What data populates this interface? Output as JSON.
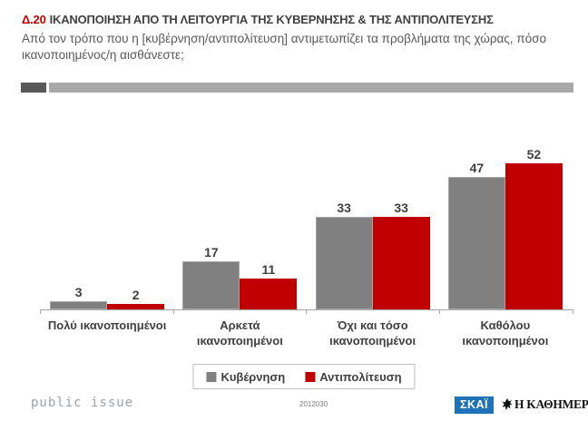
{
  "header": {
    "code": "Δ.20",
    "title": "ΙΚΑΝΟΠΟΙΗΣΗ ΑΠΟ ΤΗ ΛΕΙΤΟΥΡΓΙΑ ΤΗΣ ΚΥΒΕΡΝΗΣΗΣ & ΤΗΣ ΑΝΤΙΠΟΛΙΤΕΥΣΗΣ",
    "subtitle": "Από τον τρόπο που η [κυβέρνηση/αντιπολίτευση] αντιμετωπίζει τα προβλήματα της χώρας, πόσο ικανοποιημένος/η αισθάνεστε;"
  },
  "chart_data": {
    "type": "bar",
    "title": "Δ.20 ΙΚΑΝΟΠΟΙΗΣΗ ΑΠΟ ΤΗ ΛΕΙΤΟΥΡΓΙΑ ΤΗΣ ΚΥΒΕΡΝΗΣΗΣ & ΤΗΣ ΑΝΤΙΠΟΛΙΤΕΥΣΗΣ",
    "categories": [
      "Πολύ ικανοποιημένοι",
      "Αρκετά ικανοποιημένοι",
      "Όχι και τόσο ικανοποιημένοι",
      "Καθόλου ικανοποιημένοι"
    ],
    "category_label_lines": [
      [
        "Πολύ ικανοποιημένοι"
      ],
      [
        "Αρκετά",
        "ικανοποιημένοι"
      ],
      [
        "Όχι και τόσο",
        "ικανοποιημένοι"
      ],
      [
        "Καθόλου",
        "ικανοποιημένοι"
      ]
    ],
    "series": [
      {
        "name": "Κυβέρνηση",
        "color": "#808080",
        "values": [
          3,
          17,
          33,
          47
        ]
      },
      {
        "name": "Αντιπολίτευση",
        "color": "#C00000",
        "values": [
          2,
          11,
          33,
          52
        ]
      }
    ],
    "ylim": [
      0,
      60
    ],
    "grid": false,
    "data_labels": true,
    "legend_position": "bottom",
    "xlabel": "",
    "ylabel": ""
  },
  "colors": {
    "accent_red": "#C00000",
    "title_text": "#404040",
    "subtitle_text": "#595959",
    "bar_gray": "#808080",
    "bar_red": "#C00000",
    "axis": "#A6A6A6",
    "divider_dark": "#595959",
    "divider_light": "#A9A9A9",
    "skai_blue": "#1F72B8"
  },
  "footer": {
    "brand": "public issue",
    "survey_code": "2012030",
    "skai_label": "ΣΚΑΪ",
    "kathimerini_label": "Η ΚΑΘΗΜΕΡΙΝΗ"
  }
}
